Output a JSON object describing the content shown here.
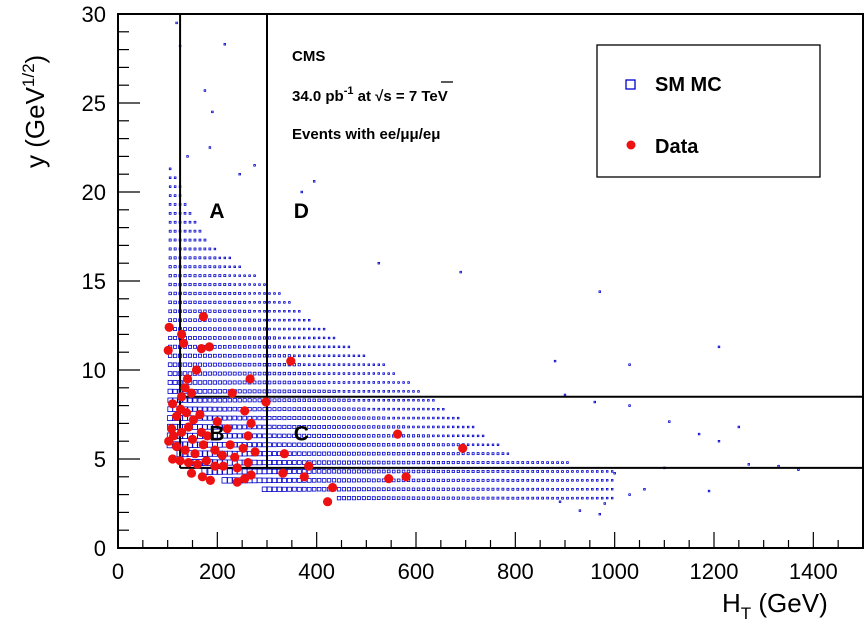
{
  "chart_data": {
    "type": "scatter",
    "xlabel_main": "H",
    "xlabel_sub": "T",
    "xlabel_unit": " (GeV)",
    "ylabel_main": "y (GeV",
    "ylabel_sup": "1/2",
    "ylabel_end": ")",
    "xlim": [
      0,
      1500
    ],
    "ylim": [
      0,
      30
    ],
    "x_ticks": [
      0,
      200,
      400,
      600,
      800,
      1000,
      1200,
      1400
    ],
    "y_ticks": [
      0,
      5,
      10,
      15,
      20,
      25,
      30
    ],
    "x_tick_labels": [
      "0",
      "200",
      "400",
      "600",
      "800",
      "1000",
      "1200",
      "1400"
    ],
    "y_tick_labels": [
      "0",
      "5",
      "10",
      "15",
      "20",
      "25",
      "30"
    ],
    "info": {
      "line1": "CMS",
      "line2_lumi": "34.0 pb",
      "line2_exp": "-1",
      "line2_at": "  at ",
      "line2_sqrt": "√",
      "line2_s": "s",
      "line2_energy": " = 7 TeV",
      "line3": "Events with ee/μμ/eμ"
    },
    "legend": {
      "position": "top-right",
      "mc_label": "SM MC",
      "data_label": "Data"
    },
    "regions": {
      "vertical_lines_x": [
        125,
        300
      ],
      "horizontal_lines_y": [
        4.5,
        8.5
      ],
      "labels": [
        {
          "text": "A",
          "x": 200,
          "y": 19
        },
        {
          "text": "D",
          "x": 370,
          "y": 19
        },
        {
          "text": "B",
          "x": 200,
          "y": 6.5
        },
        {
          "text": "C",
          "x": 370,
          "y": 6.5
        }
      ]
    },
    "colors": {
      "mc": "#0000cc",
      "data": "#ee1111",
      "axis": "#000000"
    },
    "series": [
      {
        "name": "Data",
        "points": [
          [
            103,
            12.4
          ],
          [
            101,
            11.1
          ],
          [
            128,
            12.0
          ],
          [
            132,
            11.5
          ],
          [
            172,
            13.0
          ],
          [
            168,
            11.2
          ],
          [
            184,
            11.3
          ],
          [
            158,
            10.0
          ],
          [
            140,
            9.5
          ],
          [
            135,
            9.0
          ],
          [
            128,
            8.5
          ],
          [
            148,
            8.7
          ],
          [
            110,
            8.1
          ],
          [
            118,
            7.4
          ],
          [
            126,
            7.8
          ],
          [
            138,
            7.6
          ],
          [
            152,
            7.2
          ],
          [
            165,
            7.5
          ],
          [
            108,
            6.7
          ],
          [
            112,
            6.3
          ],
          [
            128,
            6.5
          ],
          [
            142,
            6.8
          ],
          [
            150,
            6.1
          ],
          [
            168,
            6.5
          ],
          [
            180,
            6.3
          ],
          [
            102,
            6.0
          ],
          [
            118,
            5.7
          ],
          [
            135,
            5.5
          ],
          [
            155,
            5.3
          ],
          [
            172,
            5.8
          ],
          [
            195,
            5.5
          ],
          [
            210,
            5.2
          ],
          [
            226,
            5.8
          ],
          [
            235,
            5.1
          ],
          [
            252,
            5.6
          ],
          [
            110,
            5.0
          ],
          [
            125,
            4.9
          ],
          [
            142,
            4.8
          ],
          [
            160,
            4.7
          ],
          [
            178,
            4.9
          ],
          [
            195,
            4.6
          ],
          [
            212,
            4.6
          ],
          [
            240,
            4.5
          ],
          [
            262,
            4.8
          ],
          [
            276,
            5.4
          ],
          [
            148,
            4.2
          ],
          [
            170,
            4.0
          ],
          [
            186,
            3.8
          ],
          [
            240,
            3.7
          ],
          [
            255,
            3.9
          ],
          [
            268,
            4.1
          ],
          [
            255,
            7.7
          ],
          [
            266,
            9.5
          ],
          [
            230,
            8.7
          ],
          [
            200,
            7.1
          ],
          [
            220,
            6.7
          ],
          [
            262,
            6.3
          ],
          [
            268,
            7.0
          ],
          [
            298,
            8.2
          ],
          [
            348,
            10.5
          ],
          [
            335,
            5.3
          ],
          [
            384,
            4.6
          ],
          [
            332,
            4.2
          ],
          [
            375,
            4.0
          ],
          [
            432,
            3.4
          ],
          [
            422,
            2.6
          ],
          [
            545,
            3.9
          ],
          [
            580,
            4.0
          ],
          [
            563,
            6.4
          ],
          [
            694,
            5.6
          ]
        ]
      }
    ]
  }
}
